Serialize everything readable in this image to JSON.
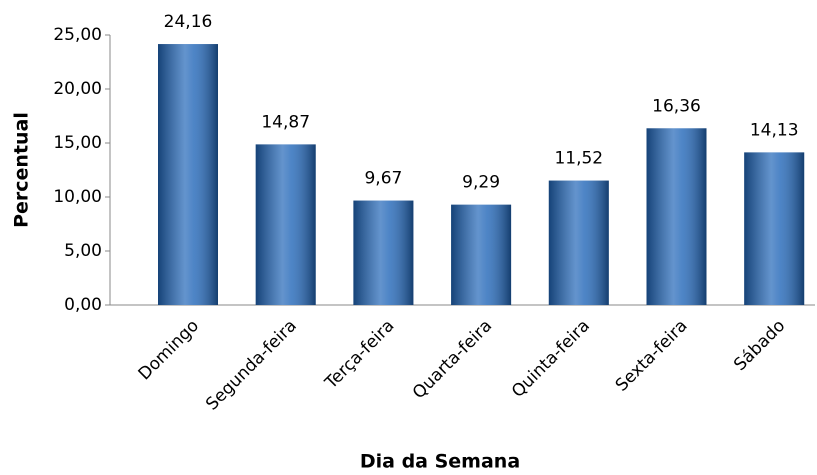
{
  "chart_data": {
    "type": "bar",
    "categories": [
      "Domingo",
      "Segunda-feira",
      "Terça-feira",
      "Quarta-feira",
      "Quinta-feira",
      "Sexta-feira",
      "Sábado"
    ],
    "values": [
      24.16,
      14.87,
      9.67,
      9.29,
      11.52,
      16.36,
      14.13
    ],
    "value_labels": [
      "24,16",
      "14,87",
      "9,67",
      "9,29",
      "11,52",
      "16,36",
      "14,13"
    ],
    "color": "#2166b8",
    "xlabel": "Dia da Semana",
    "ylabel": "Percentual",
    "ylim": [
      0,
      25
    ],
    "yticks": [
      {
        "value": 0,
        "label": "0,00"
      },
      {
        "value": 5,
        "label": "5,00"
      },
      {
        "value": 10,
        "label": "10,00"
      },
      {
        "value": 15,
        "label": "15,00"
      },
      {
        "value": 20,
        "label": "20,00"
      },
      {
        "value": 25,
        "label": "25,00"
      }
    ],
    "grid": false
  }
}
